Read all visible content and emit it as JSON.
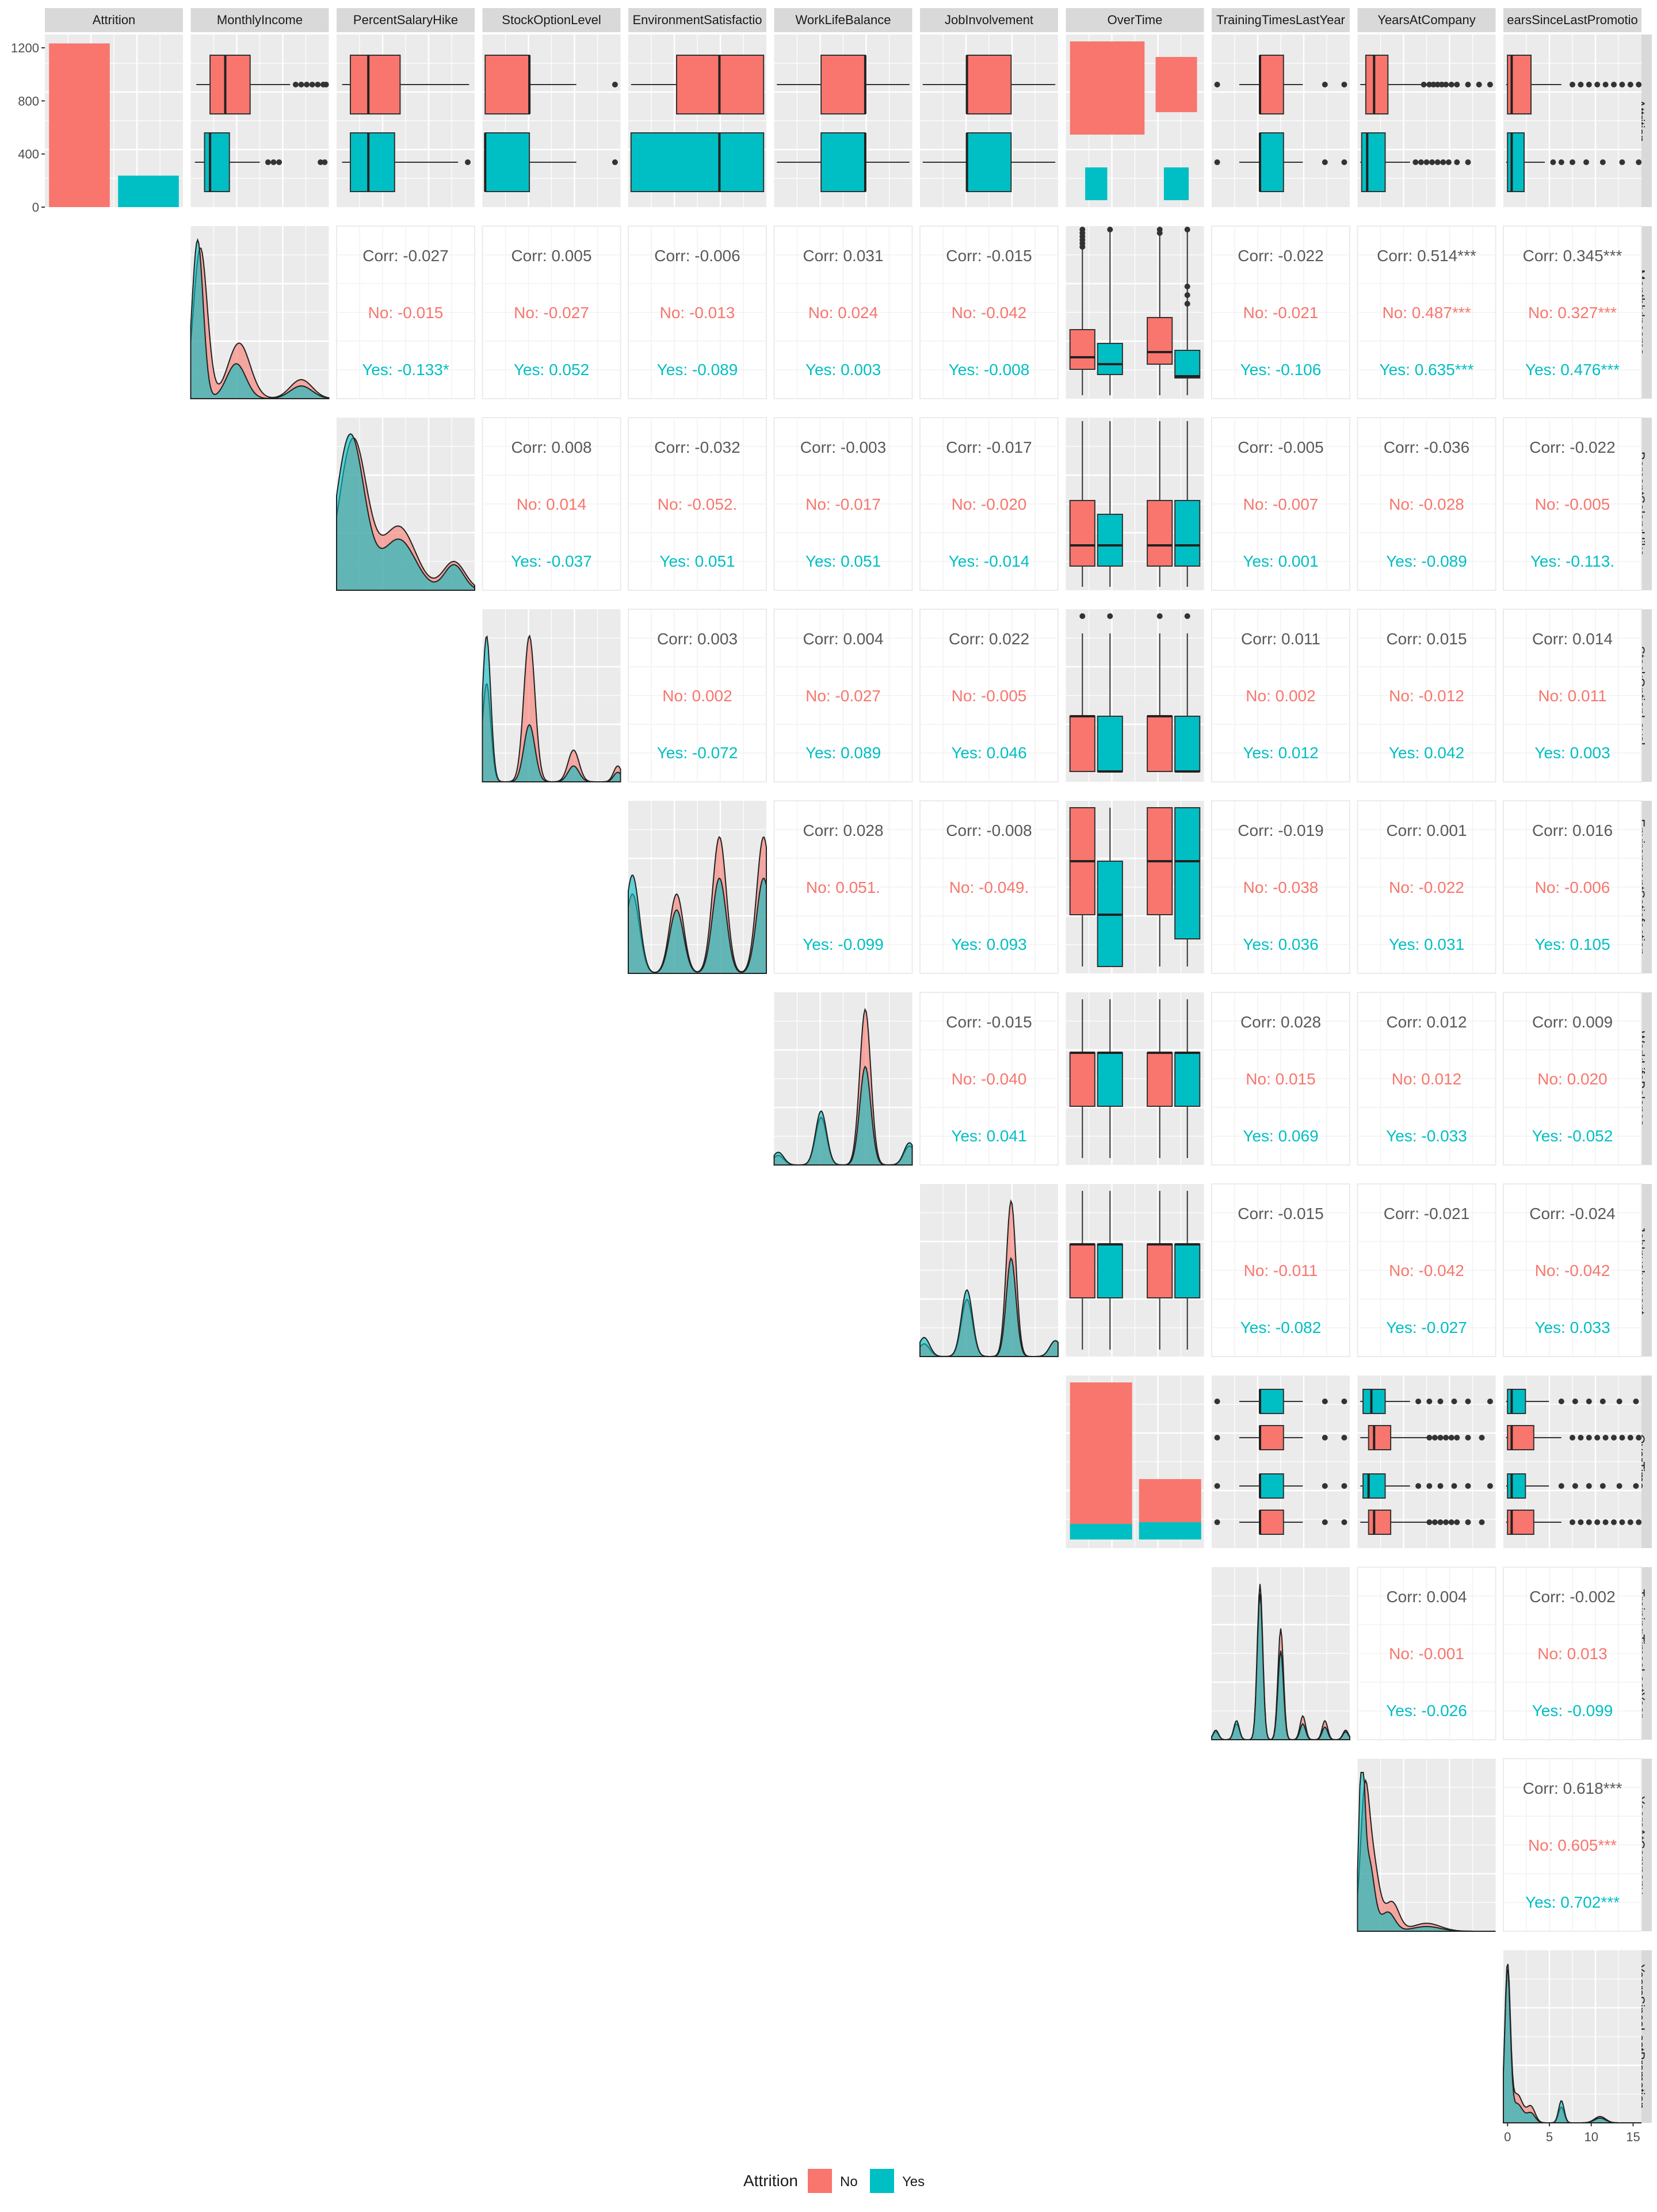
{
  "chart_data": {
    "type": "pairs",
    "variables": [
      "Attrition",
      "MonthlyIncome",
      "PercentSalaryHike",
      "StockOptionLevel",
      "EnvironmentSatisfaction",
      "WorkLifeBalance",
      "JobInvolvement",
      "OverTime",
      "TrainingTimesLastYear",
      "YearsAtCompany",
      "YearsSinceLastPromotion"
    ],
    "column_strip_labels": [
      "Attrition",
      "MonthlyIncome",
      "PercentSalaryHike",
      "StockOptionLevel",
      "EnvironmentSatisfactio",
      "WorkLifeBalance",
      "JobInvolvement",
      "OverTime",
      "TrainingTimesLastYear",
      "YearsAtCompany",
      "earsSinceLastPromotio"
    ],
    "groups": [
      "No",
      "Yes"
    ],
    "colors": {
      "No": "#F8766D",
      "Yes": "#00BFC4",
      "panel_bg": "#EBEBEB",
      "strip_bg": "#D9D9D9",
      "grid": "#FFFFFF",
      "corr_text": "#595959"
    },
    "attrition_counts": {
      "No": 1233,
      "Yes": 237
    },
    "attrition_axis": {
      "ylim": [
        0,
        1300
      ],
      "ticks": [
        "0",
        "400",
        "800",
        "1200"
      ]
    },
    "bottom_axis": {
      "variable": "YearsSinceLastPromotion",
      "xlim": [
        -0.5,
        16
      ],
      "ticks": [
        "0",
        "5",
        "10",
        "15"
      ]
    },
    "correlations": [
      {
        "row": "MonthlyIncome",
        "col": "PercentSalaryHike",
        "corr": "Corr: -0.027",
        "no": "No: -0.015",
        "yes": "Yes: -0.133*"
      },
      {
        "row": "MonthlyIncome",
        "col": "StockOptionLevel",
        "corr": "Corr: 0.005",
        "no": "No: -0.027",
        "yes": "Yes: 0.052"
      },
      {
        "row": "MonthlyIncome",
        "col": "EnvironmentSatisfaction",
        "corr": "Corr: -0.006",
        "no": "No: -0.013",
        "yes": "Yes: -0.089"
      },
      {
        "row": "MonthlyIncome",
        "col": "WorkLifeBalance",
        "corr": "Corr: 0.031",
        "no": "No: 0.024",
        "yes": "Yes: 0.003"
      },
      {
        "row": "MonthlyIncome",
        "col": "JobInvolvement",
        "corr": "Corr: -0.015",
        "no": "No: -0.042",
        "yes": "Yes: -0.008"
      },
      {
        "row": "MonthlyIncome",
        "col": "TrainingTimesLastYear",
        "corr": "Corr: -0.022",
        "no": "No: -0.021",
        "yes": "Yes: -0.106"
      },
      {
        "row": "MonthlyIncome",
        "col": "YearsAtCompany",
        "corr": "Corr: 0.514***",
        "no": "No: 0.487***",
        "yes": "Yes: 0.635***"
      },
      {
        "row": "MonthlyIncome",
        "col": "YearsSinceLastPromotion",
        "corr": "Corr: 0.345***",
        "no": "No: 0.327***",
        "yes": "Yes: 0.476***"
      },
      {
        "row": "PercentSalaryHike",
        "col": "StockOptionLevel",
        "corr": "Corr: 0.008",
        "no": "No: 0.014",
        "yes": "Yes: -0.037"
      },
      {
        "row": "PercentSalaryHike",
        "col": "EnvironmentSatisfaction",
        "corr": "Corr: -0.032",
        "no": "No: -0.052.",
        "yes": "Yes: 0.051"
      },
      {
        "row": "PercentSalaryHike",
        "col": "WorkLifeBalance",
        "corr": "Corr: -0.003",
        "no": "No: -0.017",
        "yes": "Yes: 0.051"
      },
      {
        "row": "PercentSalaryHike",
        "col": "JobInvolvement",
        "corr": "Corr: -0.017",
        "no": "No: -0.020",
        "yes": "Yes: -0.014"
      },
      {
        "row": "PercentSalaryHike",
        "col": "TrainingTimesLastYear",
        "corr": "Corr: -0.005",
        "no": "No: -0.007",
        "yes": "Yes: 0.001"
      },
      {
        "row": "PercentSalaryHike",
        "col": "YearsAtCompany",
        "corr": "Corr: -0.036",
        "no": "No: -0.028",
        "yes": "Yes: -0.089"
      },
      {
        "row": "PercentSalaryHike",
        "col": "YearsSinceLastPromotion",
        "corr": "Corr: -0.022",
        "no": "No: -0.005",
        "yes": "Yes: -0.113."
      },
      {
        "row": "StockOptionLevel",
        "col": "EnvironmentSatisfaction",
        "corr": "Corr: 0.003",
        "no": "No: 0.002",
        "yes": "Yes: -0.072"
      },
      {
        "row": "StockOptionLevel",
        "col": "WorkLifeBalance",
        "corr": "Corr: 0.004",
        "no": "No: -0.027",
        "yes": "Yes: 0.089"
      },
      {
        "row": "StockOptionLevel",
        "col": "JobInvolvement",
        "corr": "Corr: 0.022",
        "no": "No: -0.005",
        "yes": "Yes: 0.046"
      },
      {
        "row": "StockOptionLevel",
        "col": "TrainingTimesLastYear",
        "corr": "Corr: 0.011",
        "no": "No: 0.002",
        "yes": "Yes: 0.012"
      },
      {
        "row": "StockOptionLevel",
        "col": "YearsAtCompany",
        "corr": "Corr: 0.015",
        "no": "No: -0.012",
        "yes": "Yes: 0.042"
      },
      {
        "row": "StockOptionLevel",
        "col": "YearsSinceLastPromotion",
        "corr": "Corr: 0.014",
        "no": "No: 0.011",
        "yes": "Yes: 0.003"
      },
      {
        "row": "EnvironmentSatisfaction",
        "col": "WorkLifeBalance",
        "corr": "Corr: 0.028",
        "no": "No: 0.051.",
        "yes": "Yes: -0.099"
      },
      {
        "row": "EnvironmentSatisfaction",
        "col": "JobInvolvement",
        "corr": "Corr: -0.008",
        "no": "No: -0.049.",
        "yes": "Yes: 0.093"
      },
      {
        "row": "EnvironmentSatisfaction",
        "col": "TrainingTimesLastYear",
        "corr": "Corr: -0.019",
        "no": "No: -0.038",
        "yes": "Yes: 0.036"
      },
      {
        "row": "EnvironmentSatisfaction",
        "col": "YearsAtCompany",
        "corr": "Corr: 0.001",
        "no": "No: -0.022",
        "yes": "Yes: 0.031"
      },
      {
        "row": "EnvironmentSatisfaction",
        "col": "YearsSinceLastPromotion",
        "corr": "Corr: 0.016",
        "no": "No: -0.006",
        "yes": "Yes: 0.105"
      },
      {
        "row": "WorkLifeBalance",
        "col": "JobInvolvement",
        "corr": "Corr: -0.015",
        "no": "No: -0.040",
        "yes": "Yes: 0.041"
      },
      {
        "row": "WorkLifeBalance",
        "col": "TrainingTimesLastYear",
        "corr": "Corr: 0.028",
        "no": "No: 0.015",
        "yes": "Yes: 0.069"
      },
      {
        "row": "WorkLifeBalance",
        "col": "YearsAtCompany",
        "corr": "Corr: 0.012",
        "no": "No: 0.012",
        "yes": "Yes: -0.033"
      },
      {
        "row": "WorkLifeBalance",
        "col": "YearsSinceLastPromotion",
        "corr": "Corr: 0.009",
        "no": "No: 0.020",
        "yes": "Yes: -0.052"
      },
      {
        "row": "JobInvolvement",
        "col": "TrainingTimesLastYear",
        "corr": "Corr: -0.015",
        "no": "No: -0.011",
        "yes": "Yes: -0.082"
      },
      {
        "row": "JobInvolvement",
        "col": "YearsAtCompany",
        "corr": "Corr: -0.021",
        "no": "No: -0.042",
        "yes": "Yes: -0.027"
      },
      {
        "row": "JobInvolvement",
        "col": "YearsSinceLastPromotion",
        "corr": "Corr: -0.024",
        "no": "No: -0.042",
        "yes": "Yes: 0.033"
      },
      {
        "row": "TrainingTimesLastYear",
        "col": "YearsAtCompany",
        "corr": "Corr: 0.004",
        "no": "No: -0.001",
        "yes": "Yes: -0.026"
      },
      {
        "row": "TrainingTimesLastYear",
        "col": "YearsSinceLastPromotion",
        "corr": "Corr: -0.002",
        "no": "No: 0.013",
        "yes": "Yes: -0.099"
      },
      {
        "row": "YearsAtCompany",
        "col": "YearsSinceLastPromotion",
        "corr": "Corr: 0.618***",
        "no": "No: 0.605***",
        "yes": "Yes: 0.702***"
      }
    ],
    "legend": {
      "title": "Attrition",
      "position": "bottom",
      "entries": [
        "No",
        "Yes"
      ]
    }
  }
}
